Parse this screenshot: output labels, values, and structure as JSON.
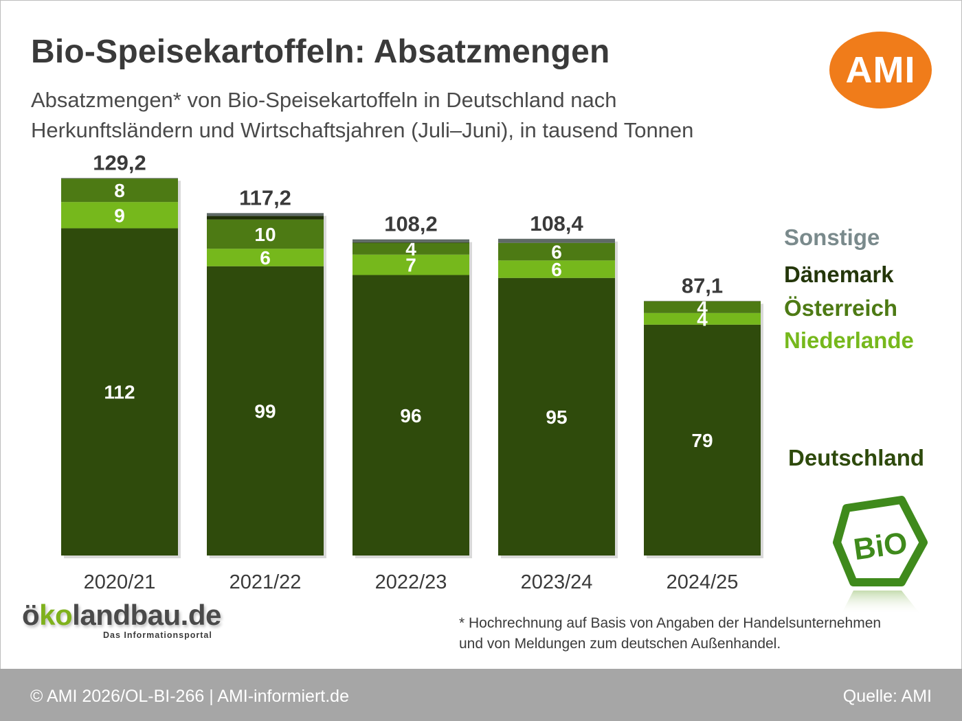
{
  "header": {
    "title": "Bio-Speisekartoffeln: Absatzmengen",
    "subtitle_line1": "Absatzmengen* von Bio-Speisekartoffeln in Deutschland nach",
    "subtitle_line2": "Herkunftsländern und Wirtschaftsjahren (Juli–Juni), in tausend Tonnen"
  },
  "logos": {
    "ami": "AMI",
    "okolandbau_prefix": "ö",
    "okolandbau_green": "ko",
    "okolandbau_rest": "landbau.de",
    "okolandbau_tag": "Das Informationsportal",
    "bio": "BiO"
  },
  "legend": [
    {
      "label": "Sonstige",
      "color": "#7a8a8c"
    },
    {
      "label": "Dänemark",
      "color": "#24360a"
    },
    {
      "label": "Österreich",
      "color": "#4d7a14"
    },
    {
      "label": "Niederlande",
      "color": "#76b81c"
    },
    {
      "label": "Deutschland",
      "color": "#2e4a0c"
    }
  ],
  "chart_data": {
    "type": "bar",
    "stacked": true,
    "categories": [
      "2020/21",
      "2021/22",
      "2022/23",
      "2023/24",
      "2024/25"
    ],
    "totals": [
      "129,2",
      "117,2",
      "108,2",
      "108,4",
      "87,1"
    ],
    "total_values": [
      129.2,
      117.2,
      108.2,
      108.4,
      87.1
    ],
    "series": [
      {
        "name": "Deutschland",
        "color": "#2f4b0c",
        "values": [
          112,
          99,
          96,
          95,
          79
        ],
        "labels": [
          "112",
          "99",
          "96",
          "95",
          "79"
        ]
      },
      {
        "name": "Niederlande",
        "color": "#76b81c",
        "values": [
          9,
          6,
          7,
          6,
          4
        ],
        "labels": [
          "9",
          "6",
          "7",
          "6",
          "4"
        ]
      },
      {
        "name": "Österreich",
        "color": "#4d7a14",
        "values": [
          8,
          10,
          4,
          6,
          4
        ],
        "labels": [
          "8",
          "10",
          "4",
          "6",
          "4"
        ]
      },
      {
        "name": "Dänemark",
        "color": "#1f2f07",
        "values": [
          0,
          1.2,
          0.2,
          0,
          0.1
        ],
        "labels": [
          "",
          "",
          "",
          "",
          ""
        ]
      },
      {
        "name": "Sonstige",
        "color": "#5f6a66",
        "values": [
          0.2,
          1.0,
          1.0,
          1.4,
          0
        ],
        "labels": [
          "",
          "",
          "",
          "",
          ""
        ]
      }
    ],
    "ylim": [
      0,
      130
    ]
  },
  "footnote": {
    "line1": "* Hochrechnung auf Basis von Angaben der Handelsunternehmen",
    "line2": "und von Meldungen zum deutschen Außenhandel."
  },
  "footer": {
    "left": "© AMI 2026/OL-BI-266 | AMI-informiert.de",
    "right": "Quelle: AMI"
  }
}
